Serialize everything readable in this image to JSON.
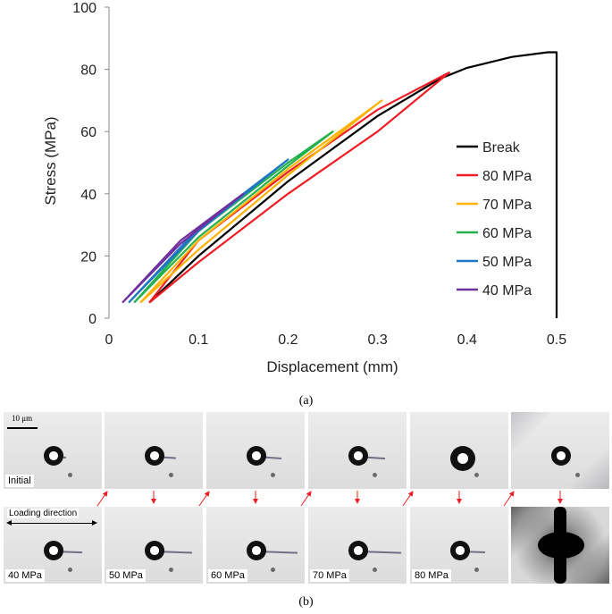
{
  "chart_data": {
    "type": "line",
    "title": "",
    "xlabel": "Displacement (mm)",
    "ylabel": "Stress (MPa)",
    "xlim": [
      0,
      0.5
    ],
    "ylim": [
      0,
      100
    ],
    "xticks": [
      "0",
      "0.1",
      "0.2",
      "0.3",
      "0.4",
      "0.5"
    ],
    "yticks": [
      "0",
      "20",
      "40",
      "60",
      "80",
      "100"
    ],
    "legend_position": "right",
    "grid": false,
    "series": [
      {
        "name": "Break",
        "color": "#000000",
        "points": [
          [
            0.045,
            5
          ],
          [
            0.1,
            20
          ],
          [
            0.2,
            44
          ],
          [
            0.3,
            65
          ],
          [
            0.37,
            77
          ],
          [
            0.4,
            80.5
          ],
          [
            0.45,
            84
          ],
          [
            0.49,
            85.5
          ],
          [
            0.5,
            85.5
          ],
          [
            0.5,
            0
          ]
        ]
      },
      {
        "name": "80 MPa",
        "color": "#ee1c24",
        "points": [
          [
            0.045,
            5
          ],
          [
            0.1,
            18
          ],
          [
            0.2,
            40
          ],
          [
            0.3,
            60
          ],
          [
            0.38,
            79
          ],
          [
            0.3,
            67
          ],
          [
            0.2,
            47
          ],
          [
            0.1,
            25
          ],
          [
            0.045,
            5
          ]
        ]
      },
      {
        "name": "70 MPa",
        "color": "#ffb300",
        "points": [
          [
            0.035,
            5
          ],
          [
            0.1,
            22
          ],
          [
            0.2,
            46
          ],
          [
            0.3,
            69
          ],
          [
            0.305,
            70
          ],
          [
            0.2,
            48
          ],
          [
            0.1,
            25
          ],
          [
            0.035,
            5
          ]
        ]
      },
      {
        "name": "60 MPa",
        "color": "#22b14c",
        "points": [
          [
            0.028,
            5
          ],
          [
            0.1,
            26
          ],
          [
            0.2,
            49
          ],
          [
            0.25,
            60
          ],
          [
            0.2,
            50
          ],
          [
            0.1,
            28
          ],
          [
            0.028,
            5
          ]
        ]
      },
      {
        "name": "50 MPa",
        "color": "#1f77c4",
        "points": [
          [
            0.022,
            5
          ],
          [
            0.1,
            28
          ],
          [
            0.2,
            51
          ],
          [
            0.2,
            51
          ],
          [
            0.1,
            29
          ],
          [
            0.022,
            5
          ]
        ]
      },
      {
        "name": "40 MPa",
        "color": "#7030a0",
        "points": [
          [
            0.015,
            5
          ],
          [
            0.08,
            24
          ],
          [
            0.15,
            40
          ],
          [
            0.08,
            25
          ],
          [
            0.015,
            5
          ]
        ]
      }
    ]
  },
  "caption_a": "(a)",
  "caption_b": "(b)",
  "micrographs": {
    "scale_label": "10 μm",
    "loading_label": "Loading direction",
    "top_labels": [
      "Initial",
      "",
      "",
      "",
      "",
      ""
    ],
    "bottom_labels": [
      "40 MPa",
      "50 MPa",
      "60 MPa",
      "70 MPa",
      "80 MPa",
      ""
    ],
    "arrow_color": "#ee1c24"
  }
}
